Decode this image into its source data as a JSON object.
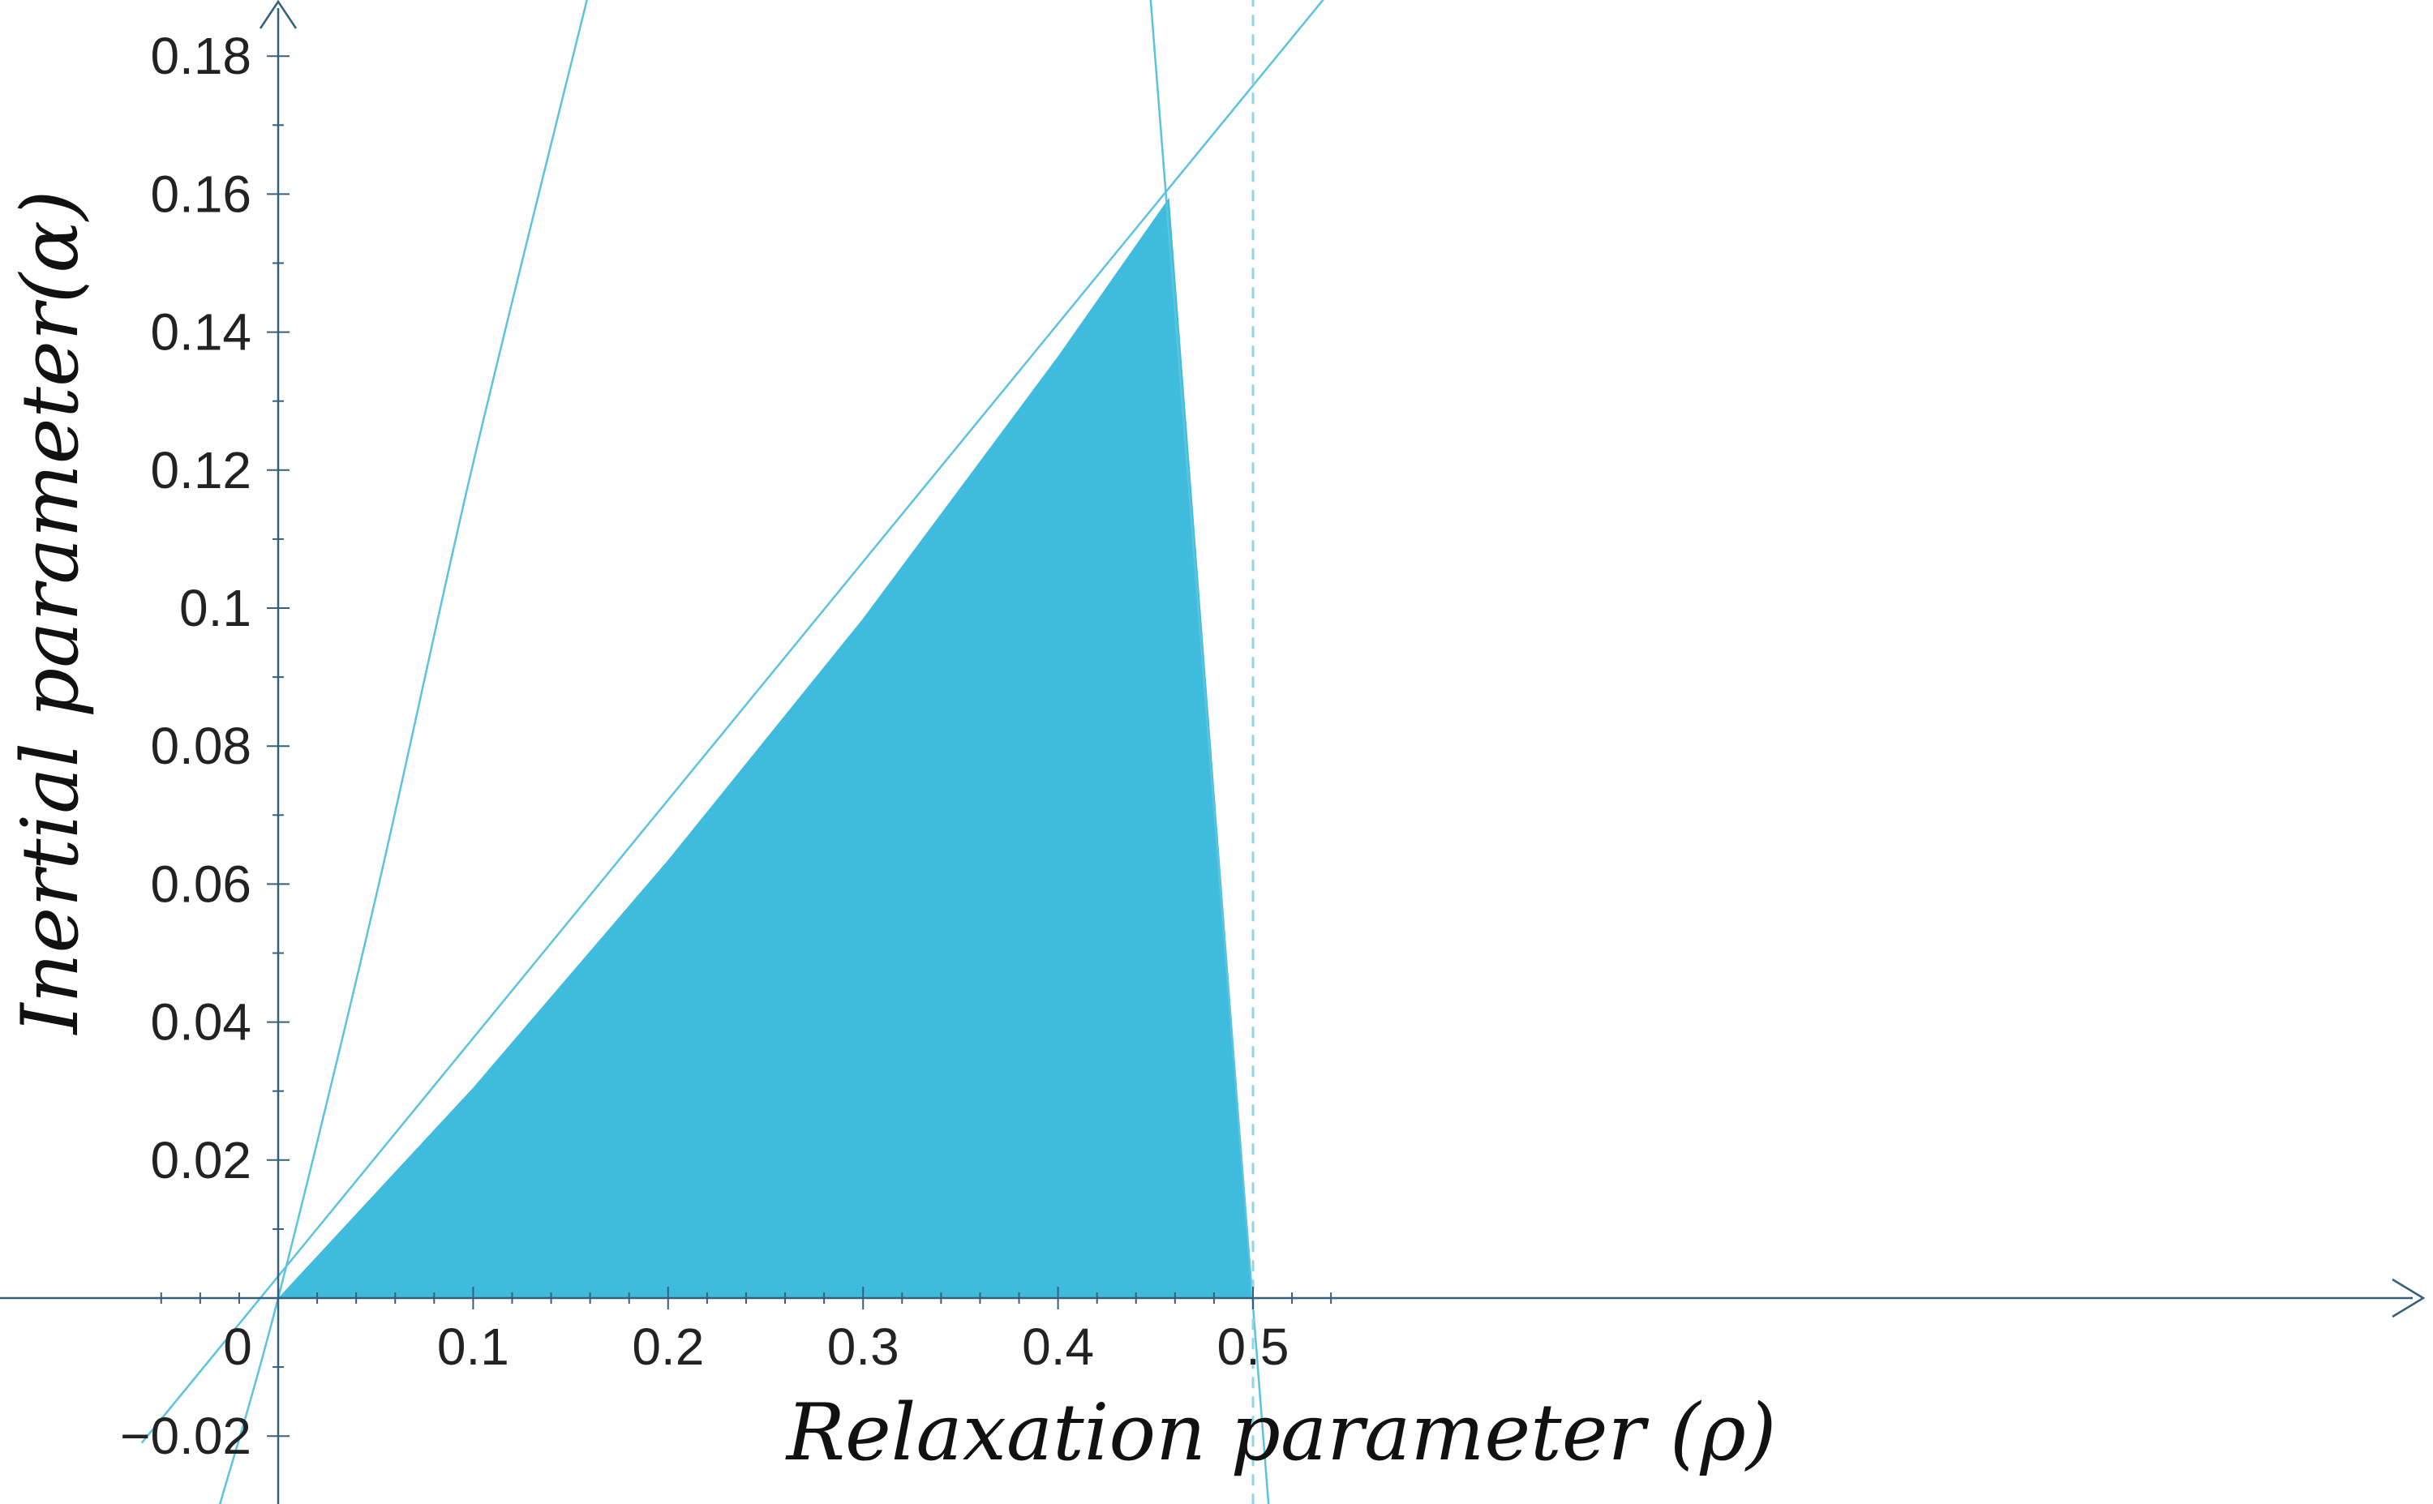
{
  "chart_data": {
    "type": "area",
    "xlabel": "Relaxation parameter (ρ)",
    "ylabel": "Inertial parameter(α)",
    "xlim": [
      -0.07,
      0.55
    ],
    "ylim": [
      -0.03,
      0.19
    ],
    "x_ticks": [
      "0",
      "0.1",
      "0.2",
      "0.3",
      "0.4",
      "0.5"
    ],
    "y_ticks": [
      "−0.02",
      "0.02",
      "0.04",
      "0.06",
      "0.08",
      "0.1",
      "0.12",
      "0.14",
      "0.16",
      "0.18"
    ],
    "grid": false,
    "legend": "none",
    "region": {
      "description_color": "#3fbbdd",
      "vertices": [
        [
          0,
          0
        ],
        [
          0.1,
          0.0305
        ],
        [
          0.2,
          0.0635
        ],
        [
          0.3,
          0.0985
        ],
        [
          0.4,
          0.1365
        ],
        [
          0.457,
          0.1595
        ],
        [
          0.5,
          0
        ]
      ]
    },
    "curves": [
      {
        "kind": "parabola",
        "points": [
          [
            -0.03,
            -0.03
          ],
          [
            0,
            0
          ],
          [
            0.05,
            0.058
          ],
          [
            0.1,
            0.121
          ],
          [
            0.16,
            0.19
          ]
        ]
      },
      {
        "kind": "line",
        "points": [
          [
            -0.07,
            -0.021
          ],
          [
            0.55,
            0.193
          ]
        ]
      },
      {
        "kind": "line",
        "points": [
          [
            0.447,
            0.19
          ],
          [
            0.508,
            -0.03
          ]
        ]
      },
      {
        "kind": "dashed-vertical",
        "points": [
          [
            0.5,
            -0.03
          ],
          [
            0.5,
            0.19
          ]
        ]
      }
    ],
    "colors": {
      "region": "#3fbbdd",
      "curve": "#5bc3e0",
      "axis": "#34607a",
      "dashed": "#8fd6ea"
    }
  }
}
